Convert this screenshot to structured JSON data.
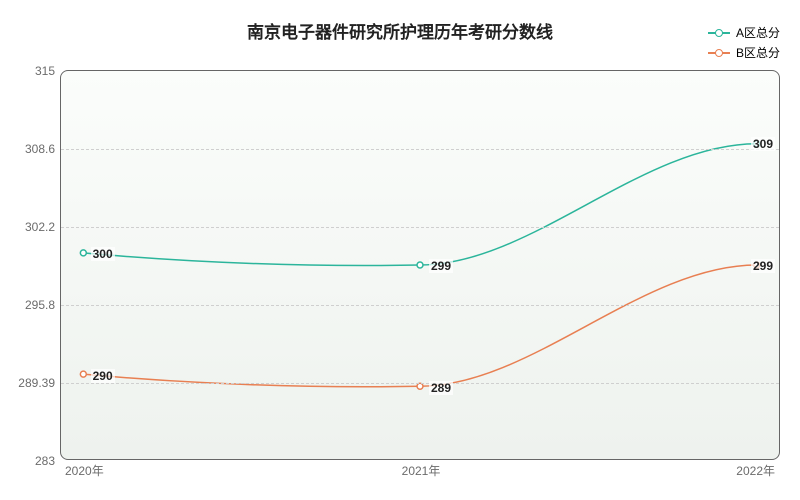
{
  "chart": {
    "type": "line",
    "title": "南京电子器件研究所护理历年考研分数线",
    "title_fontsize": 17,
    "title_color": "#222222",
    "background_color": "#ffffff",
    "plot_background_gradient": {
      "from": "#fbfdfb",
      "to": "#eef2ee"
    },
    "plot_border_color": "#666666",
    "plot_border_radius": 8,
    "grid_color": "#cfcfcf",
    "grid_style": "dashed",
    "axis_label_color": "#6b6b6b",
    "axis_label_fontsize": 12,
    "data_label_color": "#222222",
    "data_label_fontsize": 12,
    "line_width": 1.5,
    "marker_radius": 3,
    "x": {
      "categories": [
        "2020年",
        "2021年",
        "2022年"
      ],
      "positions_pct": [
        3,
        50,
        97
      ]
    },
    "y": {
      "min": 283,
      "max": 315,
      "ticks": [
        283,
        289.39,
        295.8,
        302.2,
        308.6,
        315
      ]
    },
    "series": [
      {
        "name": "A区总分",
        "color": "#2bb59b",
        "values": [
          300,
          299,
          309
        ],
        "value_labels": [
          "300",
          "299",
          "309"
        ],
        "curve_dip": 0.5
      },
      {
        "name": "B区总分",
        "color": "#e87f52",
        "values": [
          290,
          289,
          299
        ],
        "value_labels": [
          "290",
          "289",
          "299"
        ],
        "curve_dip": 0.5
      }
    ],
    "legend": {
      "position": "top-right"
    }
  }
}
